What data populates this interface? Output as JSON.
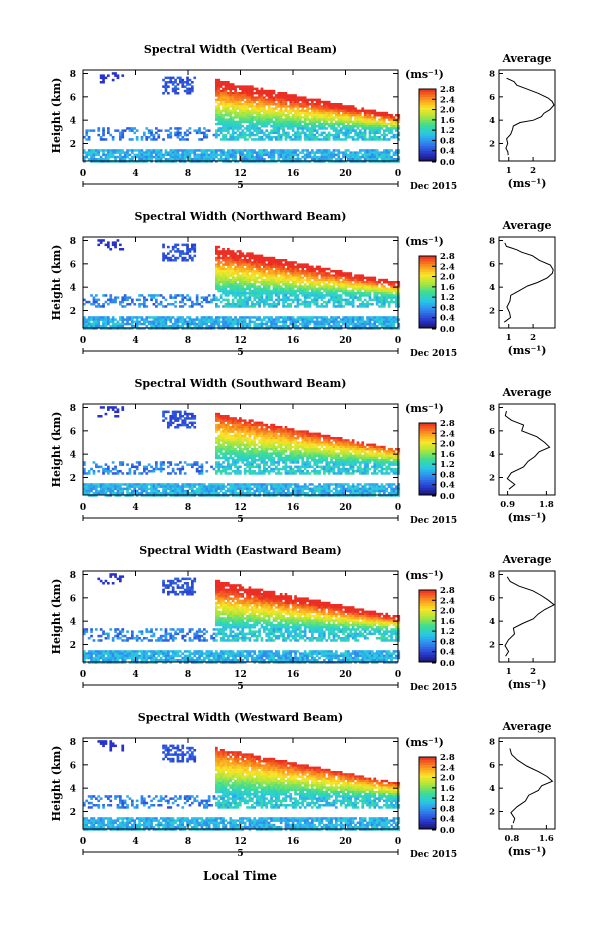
{
  "chart_data": [
    {
      "type": "heatmap",
      "title": "Spectral Width (Vertical Beam)",
      "ylabel": "Height (km)",
      "y_ticks": [
        "2",
        "4",
        "6",
        "8"
      ],
      "ylim": [
        0.5,
        8.3
      ],
      "x_ticks": [
        "0",
        "4",
        "8",
        "12",
        "16",
        "20",
        "0"
      ],
      "xlim": [
        0,
        24
      ],
      "date_label": "Dec 2015",
      "day_marker": "5",
      "colorbar": {
        "unit": "(ms⁻¹)",
        "ticks": [
          "0.0",
          "0.4",
          "0.8",
          "1.2",
          "1.6",
          "2.0",
          "2.4",
          "2.8"
        ],
        "range": [
          0,
          2.8
        ]
      },
      "average": {
        "title": "Average",
        "xlabel": "(ms⁻¹)",
        "x_ticks": [
          "1",
          "2"
        ],
        "xlim": [
          0.6,
          2.9
        ],
        "ylim": [
          0.5,
          8.3
        ],
        "y_ticks": [
          "2",
          "4",
          "6",
          "8"
        ],
        "profile": [
          [
            0.9,
            1.0
          ],
          [
            1.0,
            1.3
          ],
          [
            0.85,
            1.6
          ],
          [
            0.95,
            2.0
          ],
          [
            0.9,
            2.4
          ],
          [
            1.1,
            2.8
          ],
          [
            1.15,
            3.2
          ],
          [
            1.3,
            3.5
          ],
          [
            1.6,
            3.8
          ],
          [
            2.0,
            4.0
          ],
          [
            2.3,
            4.3
          ],
          [
            2.5,
            4.6
          ],
          [
            2.7,
            4.9
          ],
          [
            2.85,
            5.3
          ],
          [
            2.9,
            5.6
          ],
          [
            2.7,
            5.9
          ],
          [
            2.3,
            6.3
          ],
          [
            1.8,
            6.7
          ],
          [
            1.4,
            7.0
          ],
          [
            1.1,
            7.3
          ],
          [
            0.9,
            7.6
          ]
        ]
      }
    },
    {
      "type": "heatmap",
      "title": "Spectral Width (Northward Beam)",
      "ylabel": "Height (km)",
      "y_ticks": [
        "2",
        "4",
        "6",
        "8"
      ],
      "ylim": [
        0.5,
        8.3
      ],
      "x_ticks": [
        "0",
        "4",
        "8",
        "12",
        "16",
        "20",
        "0"
      ],
      "xlim": [
        0,
        24
      ],
      "date_label": "Dec 2015",
      "day_marker": "5",
      "colorbar": {
        "unit": "(ms⁻¹)",
        "ticks": [
          "0.0",
          "0.4",
          "0.8",
          "1.2",
          "1.6",
          "2.0",
          "2.4",
          "2.8"
        ],
        "range": [
          0,
          2.8
        ]
      },
      "average": {
        "title": "Average",
        "xlabel": "(ms⁻¹)",
        "x_ticks": [
          "1",
          "2"
        ],
        "xlim": [
          0.6,
          2.9
        ],
        "ylim": [
          0.5,
          8.3
        ],
        "y_ticks": [
          "2",
          "4",
          "6",
          "8"
        ],
        "profile": [
          [
            0.9,
            1.0
          ],
          [
            1.0,
            1.4
          ],
          [
            0.9,
            1.8
          ],
          [
            1.0,
            2.3
          ],
          [
            1.1,
            2.8
          ],
          [
            1.2,
            3.3
          ],
          [
            1.4,
            3.7
          ],
          [
            1.7,
            4.1
          ],
          [
            2.1,
            4.4
          ],
          [
            2.5,
            4.8
          ],
          [
            2.75,
            5.2
          ],
          [
            2.8,
            5.5
          ],
          [
            2.6,
            5.9
          ],
          [
            2.3,
            6.3
          ],
          [
            2.0,
            6.7
          ],
          [
            1.6,
            7.0
          ],
          [
            1.2,
            7.2
          ],
          [
            0.9,
            7.5
          ],
          [
            0.8,
            7.8
          ]
        ]
      }
    },
    {
      "type": "heatmap",
      "title": "Spectral Width (Southward Beam)",
      "ylabel": "Height (km)",
      "y_ticks": [
        "2",
        "4",
        "6",
        "8"
      ],
      "ylim": [
        0.5,
        8.3
      ],
      "x_ticks": [
        "0",
        "4",
        "8",
        "12",
        "16",
        "20",
        "0"
      ],
      "xlim": [
        0,
        24
      ],
      "date_label": "Dec 2015",
      "day_marker": "5",
      "colorbar": {
        "unit": "(ms⁻¹)",
        "ticks": [
          "0.0",
          "0.4",
          "0.8",
          "1.2",
          "1.6",
          "2.0",
          "2.4",
          "2.8"
        ],
        "range": [
          0,
          2.8
        ]
      },
      "average": {
        "title": "Average",
        "xlabel": "(ms⁻¹)",
        "x_ticks": [
          "0.9",
          "1.8"
        ],
        "xlim": [
          0.7,
          2.0
        ],
        "ylim": [
          0.5,
          8.3
        ],
        "y_ticks": [
          "2",
          "4",
          "6",
          "8"
        ],
        "profile": [
          [
            0.9,
            1.0
          ],
          [
            1.0,
            1.4
          ],
          [
            0.95,
            1.9
          ],
          [
            1.05,
            2.4
          ],
          [
            1.2,
            2.9
          ],
          [
            1.3,
            3.4
          ],
          [
            1.5,
            3.8
          ],
          [
            1.7,
            4.2
          ],
          [
            1.85,
            4.6
          ],
          [
            1.75,
            5.0
          ],
          [
            1.5,
            5.5
          ],
          [
            1.3,
            6.0
          ],
          [
            1.2,
            6.5
          ],
          [
            1.0,
            6.9
          ],
          [
            0.9,
            7.3
          ],
          [
            0.85,
            7.7
          ]
        ]
      }
    },
    {
      "type": "heatmap",
      "title": "Spectral Width (Eastward Beam)",
      "ylabel": "Height (km)",
      "y_ticks": [
        "2",
        "4",
        "6",
        "8"
      ],
      "ylim": [
        0.5,
        8.3
      ],
      "x_ticks": [
        "0",
        "4",
        "8",
        "12",
        "16",
        "20",
        "0"
      ],
      "xlim": [
        0,
        24
      ],
      "date_label": "Dec 2015",
      "day_marker": "5",
      "colorbar": {
        "unit": "(ms⁻¹)",
        "ticks": [
          "0.0",
          "0.4",
          "0.8",
          "1.2",
          "1.6",
          "2.0",
          "2.4",
          "2.8"
        ],
        "range": [
          0,
          2.8
        ]
      },
      "average": {
        "title": "Average",
        "xlabel": "(ms⁻¹)",
        "x_ticks": [
          "1",
          "2"
        ],
        "xlim": [
          0.6,
          2.9
        ],
        "ylim": [
          0.5,
          8.3
        ],
        "y_ticks": [
          "2",
          "4",
          "6",
          "8"
        ],
        "profile": [
          [
            0.9,
            1.0
          ],
          [
            1.0,
            1.4
          ],
          [
            0.9,
            1.9
          ],
          [
            1.0,
            2.4
          ],
          [
            1.1,
            2.9
          ],
          [
            1.25,
            3.4
          ],
          [
            1.5,
            3.8
          ],
          [
            1.9,
            4.2
          ],
          [
            2.3,
            4.6
          ],
          [
            2.6,
            5.0
          ],
          [
            2.8,
            5.4
          ],
          [
            2.7,
            5.8
          ],
          [
            2.4,
            6.2
          ],
          [
            1.9,
            6.6
          ],
          [
            1.4,
            7.0
          ],
          [
            1.0,
            7.4
          ],
          [
            0.8,
            7.8
          ]
        ]
      }
    },
    {
      "type": "heatmap",
      "title": "Spectral Width (Westward Beam)",
      "ylabel": "Height (km)",
      "y_ticks": [
        "2",
        "4",
        "6",
        "8"
      ],
      "ylim": [
        0.5,
        8.3
      ],
      "x_ticks": [
        "0",
        "4",
        "8",
        "12",
        "16",
        "20",
        "0"
      ],
      "xlim": [
        0,
        24
      ],
      "date_label": "Dec 2015",
      "day_marker": "5",
      "colorbar": {
        "unit": "(ms⁻¹)",
        "ticks": [
          "0.0",
          "0.4",
          "0.8",
          "1.2",
          "1.6",
          "2.0",
          "2.4",
          "2.8"
        ],
        "range": [
          0,
          2.8
        ]
      },
      "average": {
        "title": "Average",
        "xlabel": "(ms⁻¹)",
        "x_ticks": [
          "0.8",
          "1.6"
        ],
        "xlim": [
          0.5,
          1.8
        ],
        "ylim": [
          0.5,
          8.3
        ],
        "y_ticks": [
          "2",
          "4",
          "6",
          "8"
        ],
        "profile": [
          [
            0.8,
            1.0
          ],
          [
            0.9,
            1.4
          ],
          [
            0.85,
            1.9
          ],
          [
            0.95,
            2.4
          ],
          [
            1.05,
            2.9
          ],
          [
            1.15,
            3.4
          ],
          [
            1.35,
            3.8
          ],
          [
            1.55,
            4.2
          ],
          [
            1.7,
            4.6
          ],
          [
            1.6,
            5.0
          ],
          [
            1.4,
            5.4
          ],
          [
            1.2,
            5.9
          ],
          [
            1.0,
            6.4
          ],
          [
            0.85,
            6.9
          ],
          [
            0.8,
            7.4
          ]
        ]
      }
    }
  ],
  "xlabel": "Local Time"
}
